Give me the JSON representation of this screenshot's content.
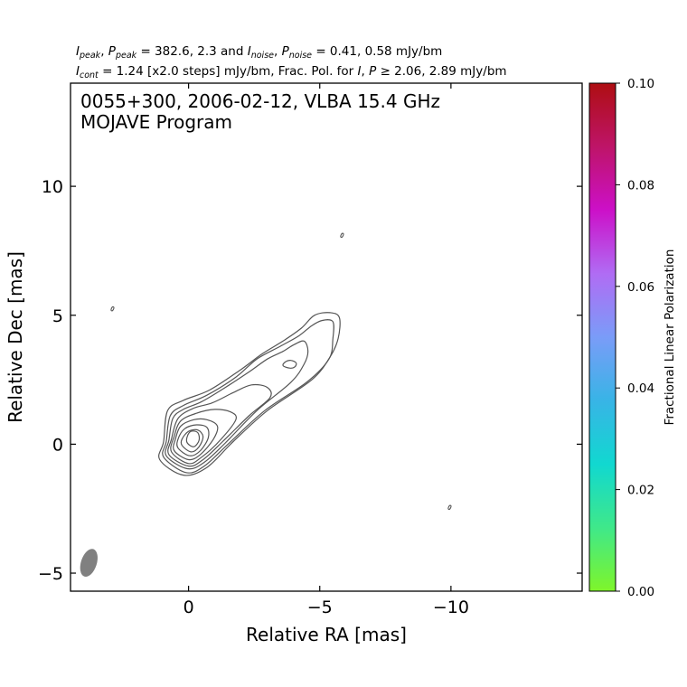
{
  "header": {
    "line1": {
      "peak_sym_i": "I",
      "peak_sub_i": "peak",
      "peak_sym_p": "P",
      "peak_sub_p": "peak",
      "peak_vals": "= 382.6, 2.3 and",
      "noise_sym_i": "I",
      "noise_sub_i": "noise",
      "noise_sym_p": "P",
      "noise_sub_p": "noise",
      "noise_vals": "= 0.41, 0.58 mJy/bm"
    },
    "line2": {
      "cont_sym": "I",
      "cont_sub": "cont",
      "cont_text": "= 1.24 [x2.0 steps] mJy/bm, Frac. Pol. for",
      "pol_sym_i": "I",
      "pol_sym_p": "P",
      "pol_text": "≥ 2.06, 2.89 mJy/bm"
    }
  },
  "chart_data": {
    "type": "contour",
    "title_line1": "0055+300, 2006-02-12, VLBA 15.4 GHz",
    "title_line2": "MOJAVE Program",
    "xlabel": "Relative RA [mas]",
    "ylabel": "Relative Dec [mas]",
    "xlim": [
      4.5,
      -15.0
    ],
    "ylim": [
      -5.7,
      14.0
    ],
    "x_ticks": [
      0,
      -5,
      -10
    ],
    "x_tick_labels": [
      "0",
      "−5",
      "−10"
    ],
    "y_ticks": [
      -5,
      0,
      5,
      10
    ],
    "y_tick_labels": [
      "−5",
      "0",
      "5",
      "10"
    ],
    "contour_color": "#555555",
    "contours": [
      {
        "level_mJy": 1.24,
        "points": [
          [
            1.1,
            -0.6
          ],
          [
            0.2,
            -1.2
          ],
          [
            -0.7,
            -0.9
          ],
          [
            -1.7,
            0.1
          ],
          [
            -3.0,
            1.3
          ],
          [
            -4.7,
            2.5
          ],
          [
            -5.4,
            3.4
          ],
          [
            -5.7,
            4.1
          ],
          [
            -5.75,
            4.9
          ],
          [
            -5.4,
            5.1
          ],
          [
            -4.8,
            5.0
          ],
          [
            -4.3,
            4.5
          ],
          [
            -3.6,
            4.0
          ],
          [
            -2.8,
            3.5
          ],
          [
            -2.0,
            2.9
          ],
          [
            -0.8,
            2.1
          ],
          [
            0.2,
            1.7
          ],
          [
            0.8,
            1.3
          ],
          [
            0.95,
            0.1
          ]
        ]
      },
      {
        "level_mJy": 2.48,
        "points": [
          [
            0.95,
            -0.5
          ],
          [
            0.1,
            -1.1
          ],
          [
            -0.6,
            -0.85
          ],
          [
            -1.5,
            0.0
          ],
          [
            -2.9,
            1.3
          ],
          [
            -4.5,
            2.4
          ],
          [
            -5.35,
            3.3
          ],
          [
            -5.5,
            4.1
          ],
          [
            -5.5,
            4.75
          ],
          [
            -5.1,
            4.8
          ],
          [
            -4.7,
            4.6
          ],
          [
            -4.2,
            4.2
          ],
          [
            -3.5,
            3.8
          ],
          [
            -2.6,
            3.3
          ],
          [
            -1.8,
            2.6
          ],
          [
            -0.7,
            1.9
          ],
          [
            0.2,
            1.5
          ],
          [
            0.7,
            1.1
          ],
          [
            0.85,
            0.1
          ]
        ]
      },
      {
        "level_mJy": 4.96,
        "points": [
          [
            0.85,
            -0.45
          ],
          [
            0.05,
            -0.95
          ],
          [
            -0.6,
            -0.7
          ],
          [
            -1.4,
            0.05
          ],
          [
            -2.6,
            1.3
          ],
          [
            -3.9,
            2.4
          ],
          [
            -4.4,
            3.1
          ],
          [
            -4.55,
            3.6
          ],
          [
            -4.4,
            4.0
          ],
          [
            -4.0,
            3.85
          ],
          [
            -3.6,
            3.6
          ],
          [
            -3.0,
            3.3
          ],
          [
            -2.3,
            2.8
          ],
          [
            -1.4,
            2.2
          ],
          [
            -0.5,
            1.65
          ],
          [
            0.2,
            1.35
          ],
          [
            0.6,
            1.0
          ],
          [
            0.75,
            0.15
          ]
        ]
      },
      {
        "level_mJy": 9.92,
        "points": [
          [
            0.75,
            -0.4
          ],
          [
            0.0,
            -0.85
          ],
          [
            -0.55,
            -0.6
          ],
          [
            -1.3,
            0.1
          ],
          [
            -2.3,
            1.1
          ],
          [
            -3.1,
            1.8
          ],
          [
            -3.0,
            2.2
          ],
          [
            -2.4,
            2.3
          ],
          [
            -1.7,
            2.0
          ],
          [
            -0.9,
            1.6
          ],
          [
            -0.2,
            1.4
          ],
          [
            0.4,
            1.0
          ],
          [
            0.65,
            0.2
          ]
        ]
      },
      {
        "level_mJy": 19.84,
        "points": [
          [
            0.65,
            -0.3
          ],
          [
            0.0,
            -0.75
          ],
          [
            -0.5,
            -0.5
          ],
          [
            -1.2,
            0.15
          ],
          [
            -1.8,
            0.95
          ],
          [
            -1.6,
            1.25
          ],
          [
            -1.0,
            1.35
          ],
          [
            -0.3,
            1.2
          ],
          [
            0.3,
            0.9
          ],
          [
            0.55,
            0.3
          ]
        ]
      },
      {
        "level_mJy": 39.68,
        "points": [
          [
            0.55,
            -0.25
          ],
          [
            0.0,
            -0.6
          ],
          [
            -0.45,
            -0.4
          ],
          [
            -0.95,
            0.2
          ],
          [
            -1.1,
            0.7
          ],
          [
            -0.7,
            0.95
          ],
          [
            -0.2,
            0.95
          ],
          [
            0.3,
            0.7
          ],
          [
            0.5,
            0.2
          ]
        ]
      },
      {
        "level_mJy": 79.36,
        "points": [
          [
            0.4,
            -0.15
          ],
          [
            -0.05,
            -0.45
          ],
          [
            -0.45,
            -0.25
          ],
          [
            -0.75,
            0.25
          ],
          [
            -0.7,
            0.65
          ],
          [
            -0.3,
            0.75
          ],
          [
            0.15,
            0.6
          ],
          [
            0.4,
            0.2
          ]
        ]
      },
      {
        "level_mJy": 158.72,
        "points": [
          [
            0.25,
            -0.05
          ],
          [
            -0.1,
            -0.3
          ],
          [
            -0.4,
            -0.1
          ],
          [
            -0.55,
            0.3
          ],
          [
            -0.35,
            0.55
          ],
          [
            0.0,
            0.5
          ],
          [
            0.25,
            0.2
          ]
        ]
      },
      {
        "level_mJy": 317.44,
        "points": [
          [
            0.05,
            0.05
          ],
          [
            -0.2,
            -0.1
          ],
          [
            -0.4,
            0.15
          ],
          [
            -0.35,
            0.45
          ],
          [
            -0.1,
            0.5
          ],
          [
            0.05,
            0.3
          ]
        ]
      },
      {
        "level_mJy": 4.96,
        "points": [
          [
            -3.6,
            3.05
          ],
          [
            -3.85,
            2.95
          ],
          [
            -4.05,
            3.0
          ],
          [
            -4.1,
            3.15
          ],
          [
            -3.9,
            3.25
          ],
          [
            -3.7,
            3.2
          ]
        ]
      }
    ],
    "noise_islands": [
      {
        "x": 2.9,
        "y": 5.25
      },
      {
        "x": -5.85,
        "y": 8.1
      },
      {
        "x": -9.95,
        "y": -2.45
      }
    ],
    "beam": {
      "x": 3.8,
      "y": -4.6,
      "major_mas": 1.0,
      "minor_mas": 0.6,
      "pa_deg": -18
    },
    "colorbar": {
      "label": "Fractional Linear Polarization",
      "range": [
        0.0,
        0.1
      ],
      "ticks": [
        0.0,
        0.02,
        0.04,
        0.06,
        0.08,
        0.1
      ],
      "tick_labels": [
        "0.00",
        "0.02",
        "0.04",
        "0.06",
        "0.08",
        "0.10"
      ],
      "colors": [
        "#7ff52a",
        "#3fe88a",
        "#11d8d0",
        "#38b4e6",
        "#7a9cf8",
        "#b06cf4",
        "#cc10c8",
        "#be1468",
        "#ae0e12"
      ]
    }
  }
}
